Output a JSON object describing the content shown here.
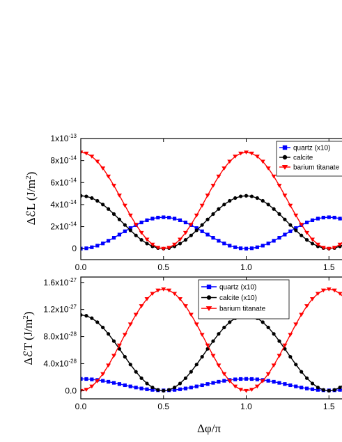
{
  "chart_data": [
    {
      "type": "line",
      "xlim": [
        0,
        1.6
      ],
      "ylim": [
        -1e-14,
        1e-13
      ],
      "x_ticks": [
        0.0,
        0.5,
        1.0,
        1.5
      ],
      "x_tick_labels": [
        "0.0",
        "0.5",
        "1.0",
        "1.5"
      ],
      "y_ticks": [
        0,
        2e-14,
        4e-14,
        6e-14,
        8e-14,
        1e-13
      ],
      "y_tick_labels": [
        {
          "mant": "0",
          "exp": ""
        },
        {
          "mant": "2x10",
          "exp": "-14"
        },
        {
          "mant": "4x10",
          "exp": "-14"
        },
        {
          "mant": "6x10",
          "exp": "-14"
        },
        {
          "mant": "8x10",
          "exp": "-14"
        },
        {
          "mant": "1x10",
          "exp": "-13"
        }
      ],
      "ylabel_main": "ΔℰL (J/m",
      "ylabel_sup": "2",
      "ylabel_tail": ")",
      "legend_position": "top-right",
      "series": [
        {
          "name": "quartz (x10)",
          "color": "#0000ff",
          "marker": "square",
          "amplitude": 2.85e-14,
          "form": "sin2"
        },
        {
          "name": "calcite",
          "color": "#000000",
          "marker": "circle",
          "amplitude": 4.8e-14,
          "form": "cos2"
        },
        {
          "name": "barium titanate",
          "color": "#ff0000",
          "marker": "triangle-down",
          "amplitude": 8.75e-14,
          "form": "cos2"
        }
      ]
    },
    {
      "type": "line",
      "xlim": [
        0,
        1.6
      ],
      "ylim": [
        -1.2e-28,
        1.68e-27
      ],
      "x_ticks": [
        0.0,
        0.5,
        1.0,
        1.5
      ],
      "x_tick_labels": [
        "0.0",
        "0.5",
        "1.0",
        "1.5"
      ],
      "y_ticks": [
        0,
        4e-28,
        8e-28,
        1.2e-27,
        1.6e-27
      ],
      "y_tick_labels": [
        {
          "mant": "0.0",
          "exp": ""
        },
        {
          "mant": "4.0x10",
          "exp": "-28"
        },
        {
          "mant": "8.0x10",
          "exp": "-28"
        },
        {
          "mant": "1.2x10",
          "exp": "-27"
        },
        {
          "mant": "1.6x10",
          "exp": "-27"
        }
      ],
      "ylabel_main": "ΔℰT (J/m",
      "ylabel_sup": "2",
      "ylabel_tail": ")",
      "xlabel": "Δφ/π",
      "legend_position": "top-center",
      "series": [
        {
          "name": "quartz (x10)",
          "color": "#0000ff",
          "marker": "square",
          "low": 5e-30,
          "high": 1.75e-28,
          "form": "cos2range"
        },
        {
          "name": "calcite (x10)",
          "color": "#000000",
          "marker": "circle",
          "amplitude": 1.12e-27,
          "form": "cos2"
        },
        {
          "name": "barium titanate",
          "color": "#ff0000",
          "marker": "triangle-down",
          "amplitude": 1.5e-27,
          "form": "sin2"
        }
      ]
    }
  ]
}
